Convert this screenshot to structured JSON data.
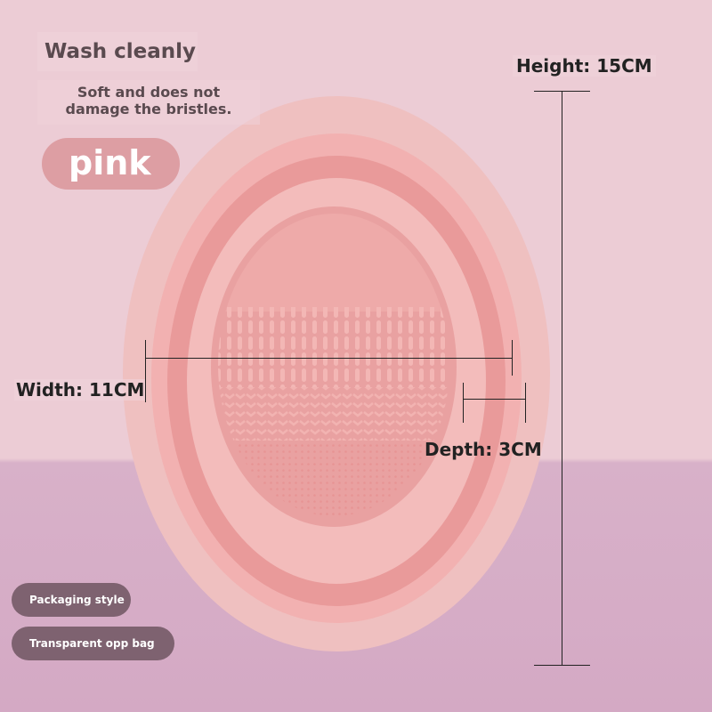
{
  "headline": "Wash cleanly",
  "subtitle_line1": "Soft and does not",
  "subtitle_line2": "damage the bristles.",
  "color_label": "pink",
  "dimensions": {
    "height": "Height: 15CM",
    "width": "Width: 11CM",
    "depth": "Depth: 3CM"
  },
  "packaging": {
    "label": "Packaging style",
    "value": "Transparent opp bag"
  },
  "colors": {
    "product": "#e9a5a5",
    "background_top": "#ecccd5",
    "background_bottom": "#d4a9c4"
  }
}
